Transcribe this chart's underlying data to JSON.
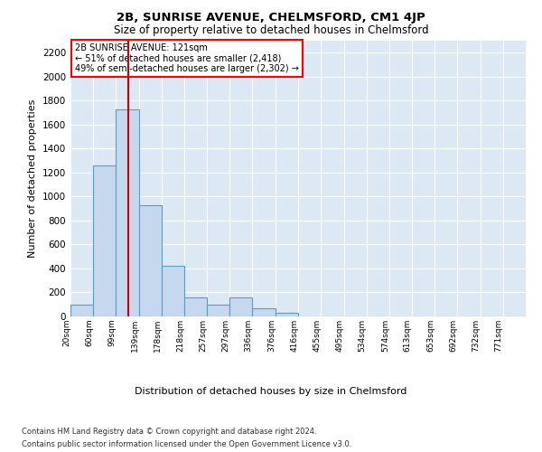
{
  "title": "2B, SUNRISE AVENUE, CHELMSFORD, CM1 4JP",
  "subtitle": "Size of property relative to detached houses in Chelmsford",
  "xlabel": "Distribution of detached houses by size in Chelmsford",
  "ylabel": "Number of detached properties",
  "footer_line1": "Contains HM Land Registry data © Crown copyright and database right 2024.",
  "footer_line2": "Contains public sector information licensed under the Open Government Licence v3.0.",
  "annotation_title": "2B SUNRISE AVENUE: 121sqm",
  "annotation_line1": "← 51% of detached houses are smaller (2,418)",
  "annotation_line2": "49% of semi-detached houses are larger (2,302) →",
  "red_line_x": 121,
  "bar_edges": [
    20,
    60,
    99,
    139,
    178,
    218,
    257,
    297,
    336,
    376,
    416,
    455,
    495,
    534,
    574,
    613,
    653,
    692,
    732,
    771,
    811
  ],
  "bar_values": [
    100,
    1260,
    1730,
    930,
    420,
    155,
    100,
    155,
    70,
    30,
    0,
    0,
    0,
    0,
    0,
    0,
    0,
    0,
    0,
    0
  ],
  "bar_color": "#c5d8ed",
  "bar_edge_color": "#5a9dc8",
  "red_line_color": "#cc0000",
  "plot_bg_color": "#dde8f5",
  "ylim": [
    0,
    2300
  ],
  "yticks": [
    0,
    200,
    400,
    600,
    800,
    1000,
    1200,
    1400,
    1600,
    1800,
    2000,
    2200
  ]
}
